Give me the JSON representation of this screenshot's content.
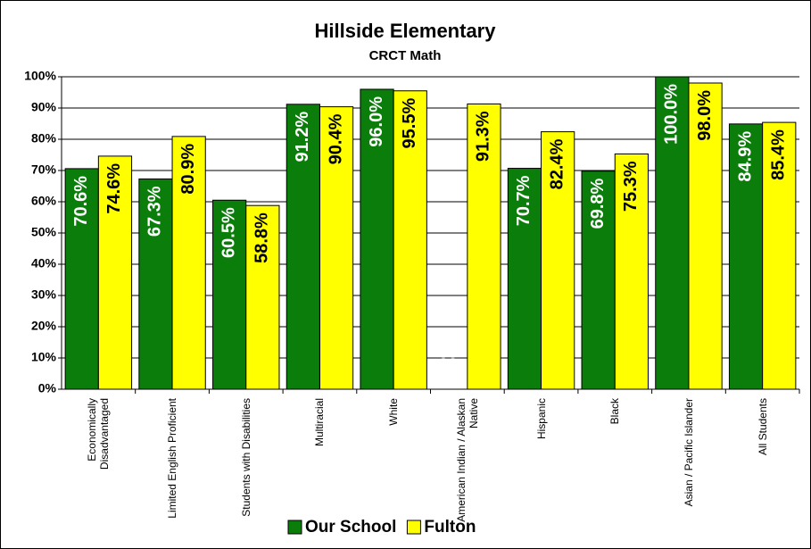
{
  "chart_data": {
    "type": "bar",
    "title": "Hillside Elementary",
    "subtitle": "CRCT Math",
    "categories": [
      "Economically Disadvantaged",
      "Limited English Proficient",
      "Students with Disabilities",
      "Multiracial",
      "White",
      "American Indian / Alaskan Native",
      "Hispanic",
      "Black",
      "Asian / Pacific Islander",
      "All Students"
    ],
    "series": [
      {
        "name": "Our School",
        "color": "#0b7d0b",
        "values": [
          70.6,
          67.3,
          60.5,
          91.2,
          96.0,
          null,
          70.7,
          69.8,
          100.0,
          84.9
        ],
        "value_labels": [
          "70.6%",
          "67.3%",
          "60.5%",
          "91.2%",
          "96.0%",
          "--",
          "70.7%",
          "69.8%",
          "100.0%",
          "84.9%"
        ]
      },
      {
        "name": "Fulton",
        "color": "#ffff00",
        "values": [
          74.6,
          80.9,
          58.8,
          90.4,
          95.5,
          91.3,
          82.4,
          75.3,
          98.0,
          85.4
        ],
        "value_labels": [
          "74.6%",
          "80.9%",
          "58.8%",
          "90.4%",
          "95.5%",
          "91.3%",
          "82.4%",
          "75.3%",
          "98.0%",
          "85.4%"
        ]
      }
    ],
    "ylim": [
      0,
      100
    ],
    "yticks": [
      {
        "value": 0,
        "label": "0%"
      },
      {
        "value": 10,
        "label": "10%"
      },
      {
        "value": 20,
        "label": "20%"
      },
      {
        "value": 30,
        "label": "30%"
      },
      {
        "value": 40,
        "label": "40%"
      },
      {
        "value": 50,
        "label": "50%"
      },
      {
        "value": 60,
        "label": "60%"
      },
      {
        "value": 70,
        "label": "70%"
      },
      {
        "value": 80,
        "label": "80%"
      },
      {
        "value": 90,
        "label": "90%"
      },
      {
        "value": 100,
        "label": "100%"
      }
    ],
    "grid": true,
    "legend": "bottom"
  }
}
